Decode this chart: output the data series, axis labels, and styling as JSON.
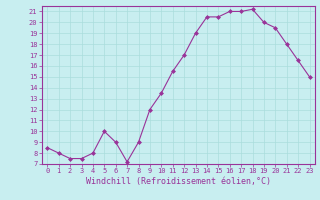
{
  "x": [
    0,
    1,
    2,
    3,
    4,
    5,
    6,
    7,
    8,
    9,
    10,
    11,
    12,
    13,
    14,
    15,
    16,
    17,
    18,
    19,
    20,
    21,
    22,
    23
  ],
  "y": [
    8.5,
    8.0,
    7.5,
    7.5,
    8.0,
    10.0,
    9.0,
    7.2,
    9.0,
    12.0,
    13.5,
    15.5,
    17.0,
    19.0,
    20.5,
    20.5,
    21.0,
    21.0,
    21.2,
    20.0,
    19.5,
    18.0,
    16.5,
    15.0
  ],
  "line_color": "#993399",
  "marker": "D",
  "marker_size": 2.0,
  "xlim_min": -0.5,
  "xlim_max": 23.5,
  "ylim_min": 7,
  "ylim_max": 21.5,
  "yticks": [
    7,
    8,
    9,
    10,
    11,
    12,
    13,
    14,
    15,
    16,
    17,
    18,
    19,
    20,
    21
  ],
  "xticks": [
    0,
    1,
    2,
    3,
    4,
    5,
    6,
    7,
    8,
    9,
    10,
    11,
    12,
    13,
    14,
    15,
    16,
    17,
    18,
    19,
    20,
    21,
    22,
    23
  ],
  "xlabel": "Windchill (Refroidissement éolien,°C)",
  "bg_color": "#c8eef0",
  "grid_color": "#aadddd",
  "axis_color": "#993399",
  "font_color": "#993399",
  "tick_fontsize": 5.0,
  "xlabel_fontsize": 6.0,
  "linewidth": 0.8
}
